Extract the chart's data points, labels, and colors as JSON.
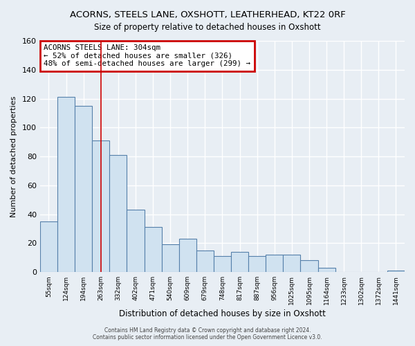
{
  "title": "ACORNS, STEELS LANE, OXSHOTT, LEATHERHEAD, KT22 0RF",
  "subtitle": "Size of property relative to detached houses in Oxshott",
  "xlabel": "Distribution of detached houses by size in Oxshott",
  "ylabel": "Number of detached properties",
  "bin_labels": [
    "55sqm",
    "124sqm",
    "194sqm",
    "263sqm",
    "332sqm",
    "402sqm",
    "471sqm",
    "540sqm",
    "609sqm",
    "679sqm",
    "748sqm",
    "817sqm",
    "887sqm",
    "956sqm",
    "1025sqm",
    "1095sqm",
    "1164sqm",
    "1233sqm",
    "1302sqm",
    "1372sqm",
    "1441sqm"
  ],
  "bar_values": [
    35,
    121,
    115,
    91,
    81,
    43,
    31,
    19,
    23,
    15,
    11,
    14,
    11,
    12,
    12,
    8,
    3,
    0,
    0,
    0,
    1
  ],
  "bar_color": "#d0e2f0",
  "bar_edge_color": "#5580aa",
  "annotation_title": "ACORNS STEELS LANE: 304sqm",
  "annotation_line1": "← 52% of detached houses are smaller (326)",
  "annotation_line2": "48% of semi-detached houses are larger (299) →",
  "annotation_box_color": "#ffffff",
  "annotation_box_edge": "#cc0000",
  "red_line_x": 3.0,
  "ylim": [
    0,
    160
  ],
  "yticks": [
    0,
    20,
    40,
    60,
    80,
    100,
    120,
    140,
    160
  ],
  "footer_line1": "Contains HM Land Registry data © Crown copyright and database right 2024.",
  "footer_line2": "Contains public sector information licensed under the Open Government Licence v3.0.",
  "background_color": "#e8eef4",
  "plot_background": "#e8eef4",
  "title_fontsize": 9.5,
  "figsize": [
    6.0,
    5.0
  ]
}
